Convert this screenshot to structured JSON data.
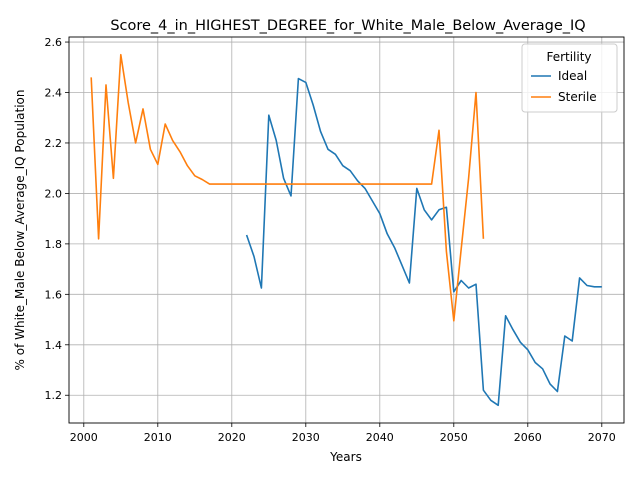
{
  "chart_data": {
    "type": "line",
    "title": "Score_4_in_HIGHEST_DEGREE_for_White_Male_Below_Average_IQ",
    "xlabel": "Years",
    "ylabel": "% of White_Male Below_Average_IQ Population",
    "xlim": [
      1998,
      2073
    ],
    "ylim": [
      1.09,
      2.62
    ],
    "xticks": [
      2000,
      2010,
      2020,
      2030,
      2040,
      2050,
      2060,
      2070
    ],
    "yticks": [
      1.2,
      1.4,
      1.6,
      1.8,
      2.0,
      2.2,
      2.4,
      2.6
    ],
    "grid": true,
    "legend": {
      "title": "Fertility",
      "position": "top-right"
    },
    "series": [
      {
        "name": "Ideal",
        "color": "#1f77b4",
        "x": [
          2022,
          2023,
          2024,
          2025,
          2026,
          2027,
          2028,
          2029,
          2030,
          2031,
          2032,
          2033,
          2034,
          2035,
          2036,
          2037,
          2038,
          2039,
          2040,
          2041,
          2042,
          2043,
          2044,
          2045,
          2046,
          2047,
          2048,
          2049,
          2050,
          2051,
          2052,
          2053,
          2054,
          2055,
          2056,
          2057,
          2058,
          2059,
          2060,
          2061,
          2062,
          2063,
          2064,
          2065,
          2066,
          2067,
          2068,
          2069,
          2070
        ],
        "values": [
          1.835,
          1.75,
          1.625,
          2.31,
          2.21,
          2.06,
          1.99,
          2.455,
          2.44,
          2.35,
          2.245,
          2.175,
          2.155,
          2.11,
          2.09,
          2.05,
          2.02,
          1.97,
          1.92,
          1.84,
          1.785,
          1.715,
          1.645,
          2.02,
          1.935,
          1.895,
          1.935,
          1.945,
          1.61,
          1.655,
          1.625,
          1.64,
          1.22,
          1.18,
          1.16,
          1.515,
          1.46,
          1.41,
          1.38,
          1.33,
          1.305,
          1.245,
          1.215,
          1.435,
          1.415,
          1.665,
          1.635,
          1.63,
          1.63
        ]
      },
      {
        "name": "Sterile",
        "color": "#ff7f0e",
        "x": [
          2001,
          2002,
          2003,
          2004,
          2005,
          2006,
          2007,
          2008,
          2009,
          2010,
          2011,
          2012,
          2013,
          2014,
          2015,
          2016,
          2017,
          2018,
          2019,
          2020,
          2021,
          2022,
          2023,
          2024,
          2025,
          2026,
          2027,
          2028,
          2029,
          2030,
          2031,
          2032,
          2033,
          2034,
          2035,
          2036,
          2037,
          2038,
          2039,
          2040,
          2041,
          2042,
          2043,
          2044,
          2045,
          2046,
          2047,
          2048,
          2049,
          2050,
          2051,
          2052,
          2053,
          2054
        ],
        "values": [
          2.46,
          1.82,
          2.43,
          2.06,
          2.55,
          2.36,
          2.2,
          2.335,
          2.175,
          2.115,
          2.275,
          2.21,
          2.165,
          2.11,
          2.07,
          2.055,
          2.037,
          2.037,
          2.037,
          2.037,
          2.037,
          2.037,
          2.037,
          2.037,
          2.037,
          2.037,
          2.037,
          2.037,
          2.037,
          2.037,
          2.037,
          2.037,
          2.037,
          2.037,
          2.037,
          2.037,
          2.037,
          2.037,
          2.037,
          2.037,
          2.037,
          2.037,
          2.037,
          2.037,
          2.037,
          2.037,
          2.037,
          2.25,
          1.77,
          1.495,
          1.78,
          2.06,
          2.4,
          1.82
        ]
      }
    ]
  }
}
